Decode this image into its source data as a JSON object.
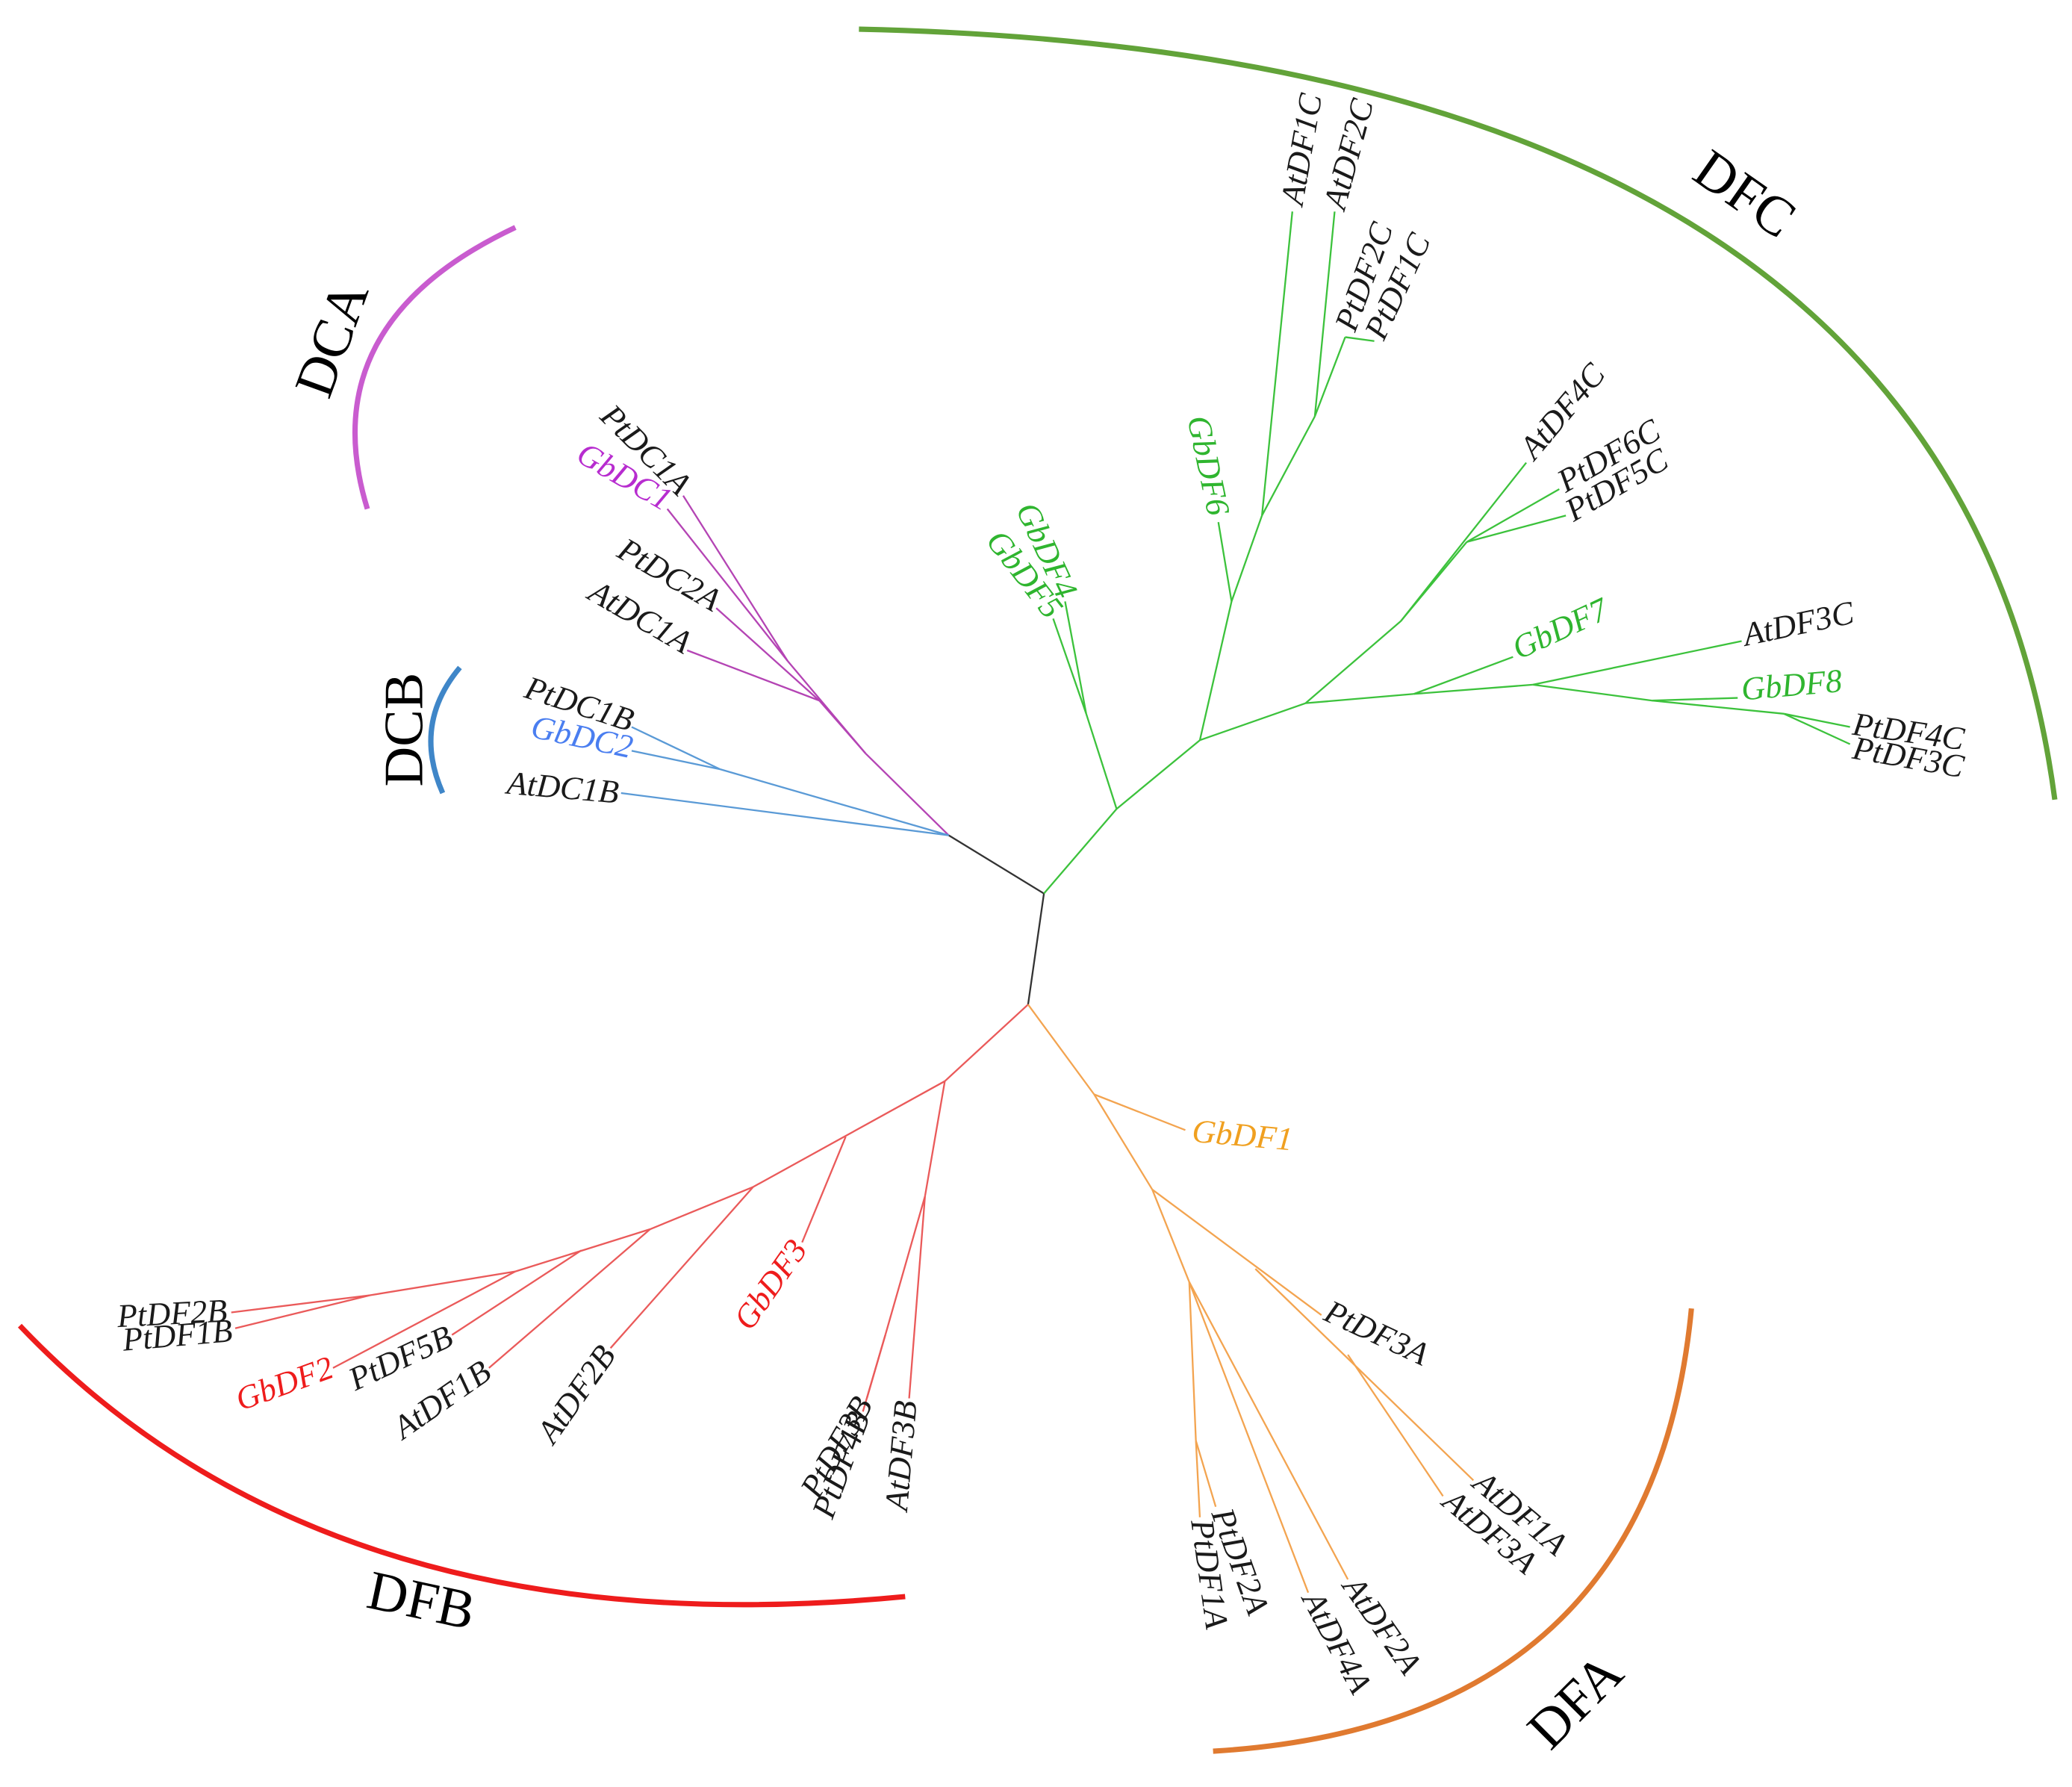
{
  "clades": [
    {
      "label": "DFC",
      "color": "#62a339"
    },
    {
      "label": "DCA",
      "color": "#c95ccf"
    },
    {
      "label": "DCB",
      "color": "#3f86c8"
    },
    {
      "label": "DFB",
      "color": "#ee1c1c"
    },
    {
      "label": "DFA",
      "color": "#e07a30"
    }
  ],
  "leaves": [
    {
      "label": "AtDF1C",
      "color": "#1a1a1a"
    },
    {
      "label": "AtDF2C",
      "color": "#1a1a1a"
    },
    {
      "label": "PtDF2C",
      "color": "#1a1a1a"
    },
    {
      "label": "PtDF1C",
      "color": "#1a1a1a"
    },
    {
      "label": "GbDF6",
      "color": "#2fb52f"
    },
    {
      "label": "GbDF4",
      "color": "#2fb52f"
    },
    {
      "label": "GbDF5",
      "color": "#2fb52f"
    },
    {
      "label": "AtDF4C",
      "color": "#1a1a1a"
    },
    {
      "label": "PtDF6C",
      "color": "#1a1a1a"
    },
    {
      "label": "PtDF5C",
      "color": "#1a1a1a"
    },
    {
      "label": "GbDF7",
      "color": "#2fb52f"
    },
    {
      "label": "AtDF3C",
      "color": "#1a1a1a"
    },
    {
      "label": "GbDF8",
      "color": "#2fb52f"
    },
    {
      "label": "PtDF4C",
      "color": "#1a1a1a"
    },
    {
      "label": "PtDF3C",
      "color": "#1a1a1a"
    },
    {
      "label": "PtDC1A",
      "color": "#1a1a1a"
    },
    {
      "label": "GbDC1",
      "color": "#b72ccf"
    },
    {
      "label": "PtDC2A",
      "color": "#1a1a1a"
    },
    {
      "label": "AtDC1A",
      "color": "#1a1a1a"
    },
    {
      "label": "PtDC1B",
      "color": "#1a1a1a"
    },
    {
      "label": "GbDC2",
      "color": "#4a7ef0"
    },
    {
      "label": "AtDC1B",
      "color": "#1a1a1a"
    },
    {
      "label": "PtDF2B",
      "color": "#1a1a1a"
    },
    {
      "label": "PtDF1B",
      "color": "#1a1a1a"
    },
    {
      "label": "GbDF2",
      "color": "#ee1c1c"
    },
    {
      "label": "PtDF5B",
      "color": "#1a1a1a"
    },
    {
      "label": "AtDF1B",
      "color": "#1a1a1a"
    },
    {
      "label": "AtDF2B",
      "color": "#1a1a1a"
    },
    {
      "label": "GbDF3",
      "color": "#ee1c1c"
    },
    {
      "label": "PtDF3B",
      "color": "#1a1a1a"
    },
    {
      "label": "PtDF4B",
      "color": "#1a1a1a"
    },
    {
      "label": "AtDF3B",
      "color": "#1a1a1a"
    },
    {
      "label": "GbDF1",
      "color": "#f0a020"
    },
    {
      "label": "PtDF3A",
      "color": "#1a1a1a"
    },
    {
      "label": "AtDF1A",
      "color": "#1a1a1a"
    },
    {
      "label": "AtDF3A",
      "color": "#1a1a1a"
    },
    {
      "label": "PtDF2A",
      "color": "#1a1a1a"
    },
    {
      "label": "PtDF1A",
      "color": "#1a1a1a"
    },
    {
      "label": "AtDF2A",
      "color": "#1a1a1a"
    },
    {
      "label": "AtDF4A",
      "color": "#1a1a1a"
    }
  ]
}
